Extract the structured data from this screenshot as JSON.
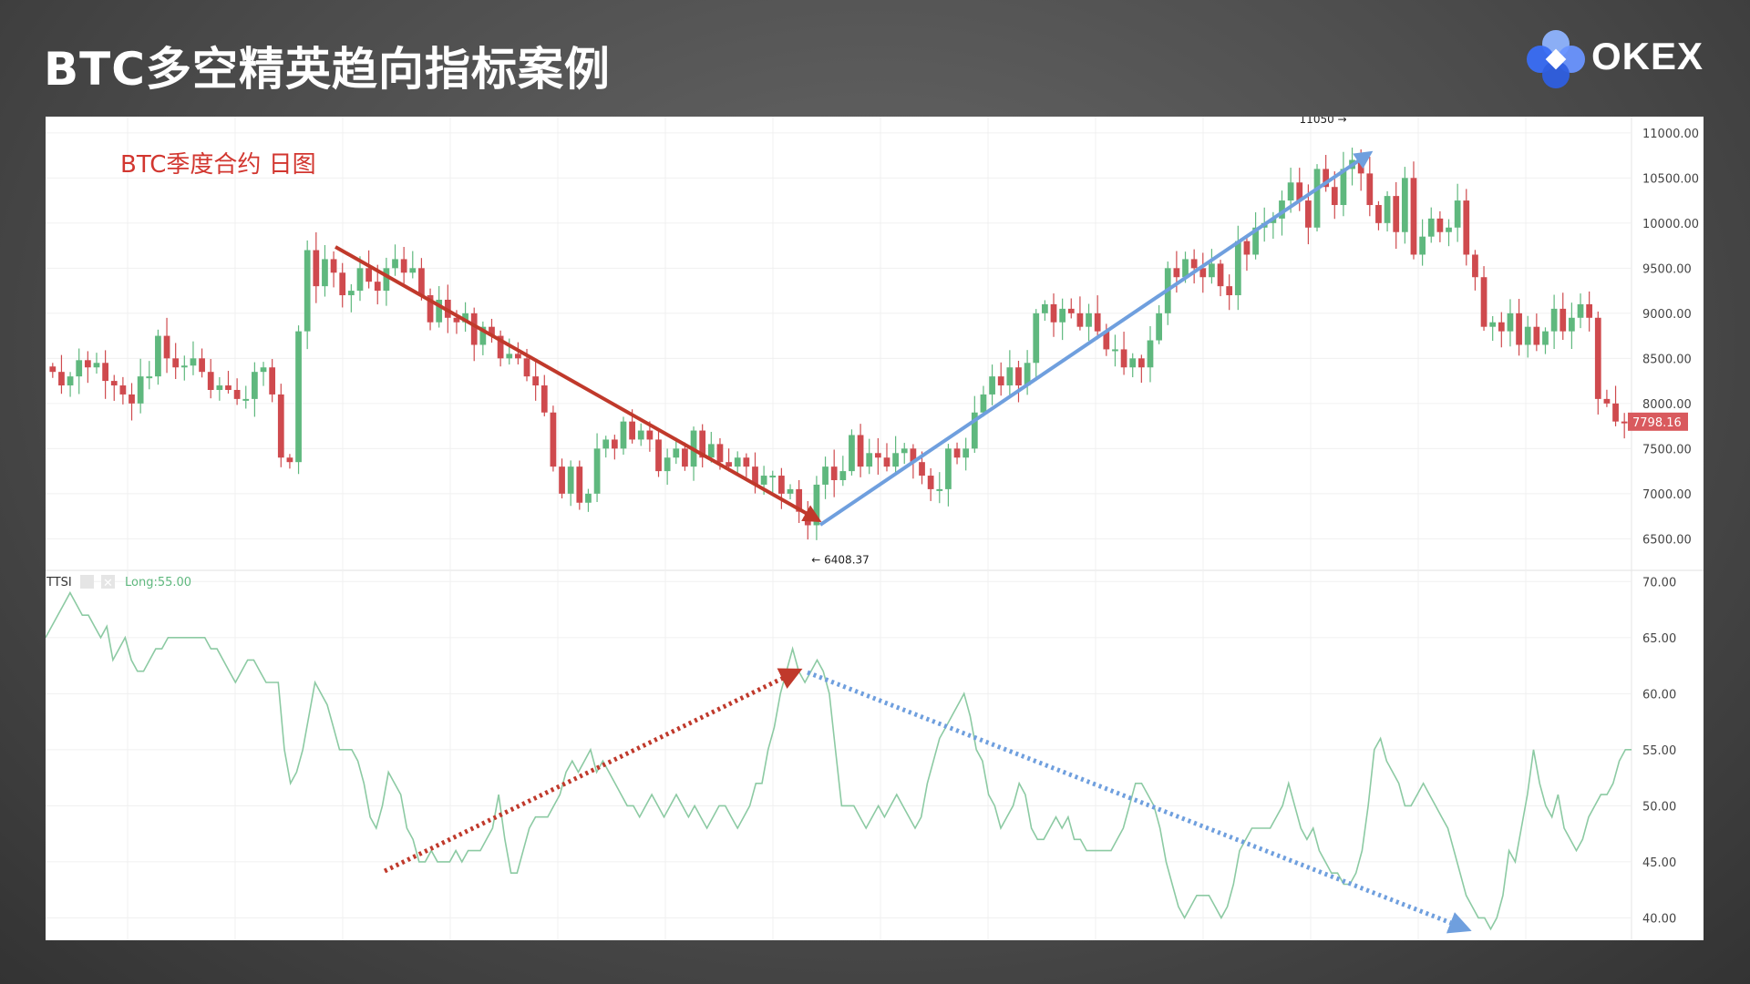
{
  "page": {
    "title": "BTC多空精英趋向指标案例"
  },
  "logo": {
    "text": "OKEX",
    "icon": "okex-logo-icon"
  },
  "colors": {
    "up": "#5fb87e",
    "down": "#cf4a4e",
    "price_tag": "#d95a5e",
    "ttsi_line": "#8ccaa3",
    "arrow_red": "#c0392b",
    "arrow_blue": "#6f9fde"
  },
  "chart_data": [
    {
      "type": "candlestick",
      "annotation": "BTC季度合约  日图",
      "ylim": [
        6150,
        11180
      ],
      "y_ticks": [
        "11000.00",
        "10500.00",
        "10000.00",
        "9500.00",
        "9000.00",
        "8500.00",
        "8000.00",
        "7500.00",
        "7000.00",
        "6500.00"
      ],
      "last_price": "7798.16",
      "high_label": "11050",
      "low_label": "6408.37",
      "high_marker": {
        "index": 148,
        "value": 11050
      },
      "low_marker": {
        "index": 86,
        "value": 6408.37
      },
      "closes": [
        8350,
        8200,
        8300,
        8480,
        8400,
        8450,
        8250,
        8200,
        8100,
        8000,
        8300,
        8300,
        8750,
        8500,
        8400,
        8420,
        8500,
        8350,
        8150,
        8200,
        8150,
        8050,
        8050,
        8350,
        8400,
        8100,
        7400,
        7350,
        8800,
        9700,
        9300,
        9600,
        9450,
        9200,
        9250,
        9500,
        9350,
        9250,
        9500,
        9600,
        9450,
        9500,
        9200,
        8900,
        9150,
        8950,
        8900,
        9000,
        8650,
        8850,
        8750,
        8500,
        8550,
        8500,
        8300,
        8200,
        7900,
        7300,
        7000,
        7300,
        6900,
        7000,
        7500,
        7600,
        7500,
        7800,
        7600,
        7700,
        7600,
        7250,
        7400,
        7500,
        7300,
        7700,
        7400,
        7550,
        7350,
        7300,
        7400,
        7300,
        7100,
        7200,
        7200,
        7000,
        7050,
        6800,
        6650,
        7100,
        7300,
        7150,
        7250,
        7650,
        7300,
        7450,
        7400,
        7300,
        7450,
        7500,
        7350,
        7200,
        7050,
        7050,
        7500,
        7400,
        7500,
        7900,
        8100,
        8300,
        8200,
        8400,
        8200,
        8450,
        9000,
        9100,
        8900,
        9050,
        9000,
        8850,
        9000,
        8800,
        8600,
        8600,
        8400,
        8500,
        8400,
        8700,
        9000,
        9500,
        9400,
        9600,
        9500,
        9400,
        9550,
        9300,
        9200,
        9800,
        9650,
        9950,
        10000,
        10050,
        10250,
        10450,
        10250,
        9950,
        10600,
        10400,
        10200,
        10600,
        10700,
        10550,
        10200,
        10000,
        10300,
        9900,
        10500,
        9650,
        9850,
        10050,
        9900,
        9950,
        10250,
        9650,
        9400,
        8850,
        8900,
        8800,
        9000,
        8650,
        8850,
        8650,
        8800,
        9050,
        8800,
        8950,
        9100,
        8950,
        8050,
        8000,
        7800,
        7798
      ]
    },
    {
      "type": "line",
      "legend": "TTSI",
      "param": "Long:55.00",
      "ylim": [
        38,
        71
      ],
      "y_ticks": [
        "70.00",
        "65.00",
        "60.00",
        "55.00",
        "50.00",
        "45.00",
        "40.00"
      ],
      "values": [
        65,
        66,
        67,
        68,
        69,
        68,
        67,
        67,
        66,
        65,
        66,
        63,
        64,
        65,
        63,
        62,
        62,
        63,
        64,
        64,
        65,
        65,
        65,
        65,
        65,
        65,
        65,
        64,
        64,
        63,
        62,
        61,
        62,
        63,
        63,
        62,
        61,
        61,
        61,
        55,
        52,
        53,
        55,
        58,
        61,
        60,
        59,
        57,
        55,
        55,
        55,
        54,
        52,
        49,
        48,
        50,
        53,
        52,
        51,
        48,
        47,
        45,
        45,
        46,
        45,
        45,
        45,
        46,
        45,
        46,
        46,
        46,
        47,
        48,
        51,
        47,
        44,
        44,
        46,
        48,
        49,
        49,
        49,
        50,
        51,
        53,
        54,
        53,
        54,
        55,
        53,
        54,
        53,
        52,
        51,
        50,
        50,
        49,
        50,
        51,
        50,
        49,
        50,
        51,
        50,
        49,
        50,
        49,
        48,
        49,
        50,
        50,
        49,
        48,
        49,
        50,
        52,
        52,
        55,
        57,
        60,
        62,
        64,
        62,
        61,
        62,
        63,
        62,
        60,
        55,
        50,
        50,
        50,
        49,
        48,
        49,
        50,
        49,
        50,
        51,
        50,
        49,
        48,
        49,
        52,
        54,
        56,
        57,
        58,
        59,
        60,
        58,
        55,
        54,
        51,
        50,
        48,
        49,
        50,
        52,
        51,
        48,
        47,
        47,
        48,
        49,
        48,
        49,
        47,
        47,
        46,
        46,
        46,
        46,
        46,
        47,
        48,
        50,
        52,
        52,
        51,
        50,
        48,
        45,
        43,
        41,
        40,
        41,
        42,
        42,
        42,
        41,
        40,
        41,
        43,
        46,
        47,
        48,
        48,
        48,
        48,
        49,
        50,
        52,
        50,
        48,
        47,
        48,
        46,
        45,
        44,
        44,
        43,
        43,
        44,
        46,
        50,
        55,
        56,
        54,
        53,
        52,
        50,
        50,
        51,
        52,
        51,
        50,
        49,
        48,
        46,
        44,
        42,
        41,
        40,
        40,
        39,
        40,
        42,
        46,
        45,
        48,
        51,
        55,
        52,
        50,
        49,
        51,
        48,
        47,
        46,
        47,
        49,
        50,
        51,
        51,
        52,
        54,
        55,
        55
      ]
    }
  ]
}
